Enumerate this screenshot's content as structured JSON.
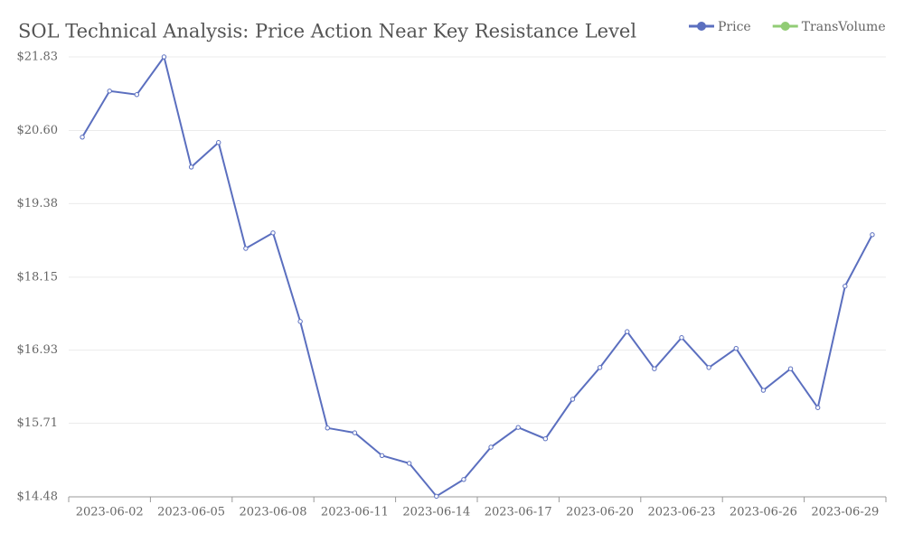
{
  "chart_data": {
    "type": "line",
    "title": "SOL Technical Analysis: Price Action Near Key Resistance Level",
    "categories": [
      null,
      "2023-06-02",
      null,
      null,
      "2023-06-05",
      null,
      null,
      "2023-06-08",
      null,
      null,
      "2023-06-11",
      null,
      null,
      "2023-06-14",
      null,
      null,
      "2023-06-17",
      null,
      null,
      "2023-06-20",
      null,
      null,
      "2023-06-23",
      null,
      null,
      "2023-06-26",
      null,
      null,
      "2023-06-29",
      null
    ],
    "series": [
      {
        "name": "Price",
        "color": "#5b6fbf",
        "values": [
          20.49,
          21.26,
          21.2,
          21.83,
          19.99,
          20.4,
          18.63,
          18.89,
          17.41,
          15.63,
          15.55,
          15.17,
          15.04,
          14.49,
          14.77,
          15.31,
          15.64,
          15.45,
          16.11,
          16.64,
          17.24,
          16.62,
          17.14,
          16.64,
          16.96,
          16.26,
          16.62,
          15.97,
          18.0,
          18.86
        ]
      },
      {
        "name": "TransVolume",
        "color": "#91cc75",
        "values": [
          null,
          null,
          null,
          null,
          null,
          null,
          null,
          null,
          null,
          null,
          null,
          null,
          null,
          null,
          null,
          null,
          null,
          null,
          null,
          null,
          null,
          null,
          null,
          null,
          null,
          null,
          null,
          null,
          null,
          null
        ]
      }
    ],
    "ylim": [
      14.48,
      21.83
    ],
    "yticks": [
      {
        "value": 14.48,
        "label": "$14.48"
      },
      {
        "value": 15.71,
        "label": "$15.71"
      },
      {
        "value": 16.93,
        "label": "$16.93"
      },
      {
        "value": 18.15,
        "label": "$18.15"
      },
      {
        "value": 19.38,
        "label": "$19.38"
      },
      {
        "value": 20.6,
        "label": "$20.60"
      },
      {
        "value": 21.83,
        "label": "$21.83"
      }
    ],
    "grid": true,
    "legend": "top-right"
  }
}
